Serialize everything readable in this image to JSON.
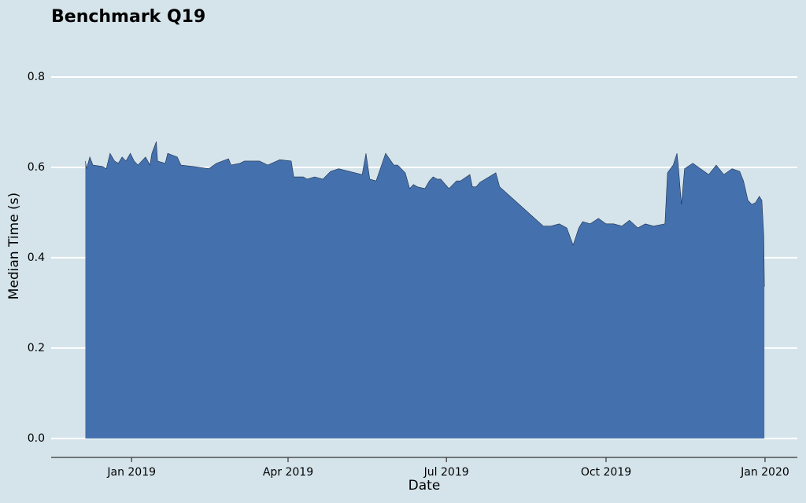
{
  "chart_data": {
    "type": "area",
    "title": "Benchmark Q19",
    "xlabel": "Date",
    "ylabel": "Median Time (s)",
    "color": "#4471ae",
    "edge_color": "#1f2d4a",
    "grid": true,
    "xlim": [
      2018.873,
      2020.051
    ],
    "ylim": [
      -0.042,
      0.9
    ],
    "xticks": [
      {
        "value": 2019,
        "label": "Jan 2019"
      },
      {
        "value": 2019.247,
        "label": "Apr 2019"
      },
      {
        "value": 2019.497,
        "label": "Jul 2019"
      },
      {
        "value": 2019.749,
        "label": "Oct 2019"
      },
      {
        "value": 2020,
        "label": "Jan 2020"
      }
    ],
    "yticks": [
      {
        "value": 0,
        "label": "0.0"
      },
      0.2,
      0.4,
      0.6,
      0.8
    ],
    "x": [
      2018.927,
      2018.929,
      2018.934,
      2018.939,
      2018.954,
      2018.96,
      2018.966,
      2018.973,
      2018.979,
      2018.985,
      2018.991,
      2018.998,
      2019.004,
      2019.01,
      2019.016,
      2019.022,
      2019.029,
      2019.032,
      2019.039,
      2019.041,
      2019.053,
      2019.057,
      2019.072,
      2019.078,
      2019.097,
      2019.122,
      2019.134,
      2019.153,
      2019.157,
      2019.171,
      2019.178,
      2019.19,
      2019.202,
      2019.215,
      2019.234,
      2019.252,
      2019.256,
      2019.271,
      2019.277,
      2019.289,
      2019.302,
      2019.314,
      2019.327,
      2019.364,
      2019.37,
      2019.376,
      2019.386,
      2019.401,
      2019.414,
      2019.42,
      2019.432,
      2019.439,
      2019.445,
      2019.451,
      2019.463,
      2019.47,
      2019.476,
      2019.482,
      2019.488,
      2019.501,
      2019.513,
      2019.519,
      2019.534,
      2019.538,
      2019.544,
      2019.55,
      2019.575,
      2019.581,
      2019.65,
      2019.662,
      2019.675,
      2019.687,
      2019.697,
      2019.706,
      2019.712,
      2019.724,
      2019.737,
      2019.749,
      2019.761,
      2019.774,
      2019.786,
      2019.799,
      2019.811,
      2019.824,
      2019.842,
      2019.846,
      2019.855,
      2019.861,
      2019.863,
      2019.868,
      2019.873,
      2019.886,
      2019.898,
      2019.911,
      2019.923,
      2019.935,
      2019.948,
      2019.96,
      2019.966,
      2019.973,
      2019.979,
      2019.985,
      2019.991,
      2019.995,
      2019.998,
      2019.999
    ],
    "values": [
      0.614,
      0.597,
      0.623,
      0.605,
      0.602,
      0.597,
      0.631,
      0.614,
      0.609,
      0.623,
      0.614,
      0.631,
      0.614,
      0.605,
      0.614,
      0.623,
      0.605,
      0.631,
      0.657,
      0.614,
      0.609,
      0.631,
      0.623,
      0.605,
      0.602,
      0.597,
      0.609,
      0.619,
      0.605,
      0.609,
      0.614,
      0.614,
      0.614,
      0.605,
      0.617,
      0.614,
      0.579,
      0.579,
      0.574,
      0.579,
      0.574,
      0.591,
      0.597,
      0.584,
      0.631,
      0.574,
      0.57,
      0.631,
      0.605,
      0.605,
      0.588,
      0.553,
      0.562,
      0.557,
      0.553,
      0.57,
      0.579,
      0.574,
      0.574,
      0.553,
      0.57,
      0.57,
      0.584,
      0.557,
      0.557,
      0.567,
      0.588,
      0.557,
      0.47,
      0.47,
      0.475,
      0.466,
      0.428,
      0.466,
      0.48,
      0.475,
      0.487,
      0.475,
      0.475,
      0.47,
      0.483,
      0.466,
      0.475,
      0.47,
      0.475,
      0.588,
      0.605,
      0.631,
      0.605,
      0.518,
      0.597,
      0.609,
      0.597,
      0.584,
      0.605,
      0.584,
      0.597,
      0.591,
      0.57,
      0.527,
      0.518,
      0.522,
      0.536,
      0.527,
      0.449,
      0.336
    ]
  }
}
